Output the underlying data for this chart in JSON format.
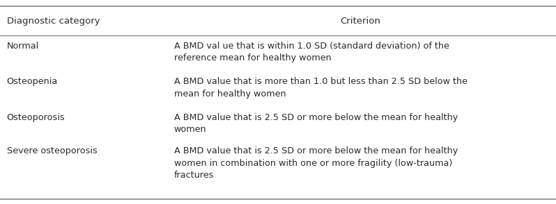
{
  "header": [
    "Diagnostic category",
    "Criterion"
  ],
  "rows": [
    [
      "Normal",
      "A BMD val ue that is within 1.0 SD (standard deviation) of the\nreference mean for healthy women"
    ],
    [
      "Osteopenia",
      "A BMD value that is more than 1.0 but less than 2.5 SD below the\nmean for healthy women"
    ],
    [
      "Osteoporosis",
      "A BMD value that is 2.5 SD or more below the mean for healthy\nwomen"
    ],
    [
      "Severe osteoporosis",
      "A BMD value that is 2.5 SD or more below the mean for healthy\nwomen in combination with one or more fragility (low-trauma)\nfractures"
    ]
  ],
  "col_split": 0.295,
  "bg_color": "#ffffff",
  "header_bg": "#ffffff",
  "text_color": "#2a2a2a",
  "border_color": "#888888",
  "font_size": 9.2,
  "header_font_size": 9.5,
  "fig_width": 7.98,
  "fig_height": 2.94,
  "dpi": 100
}
